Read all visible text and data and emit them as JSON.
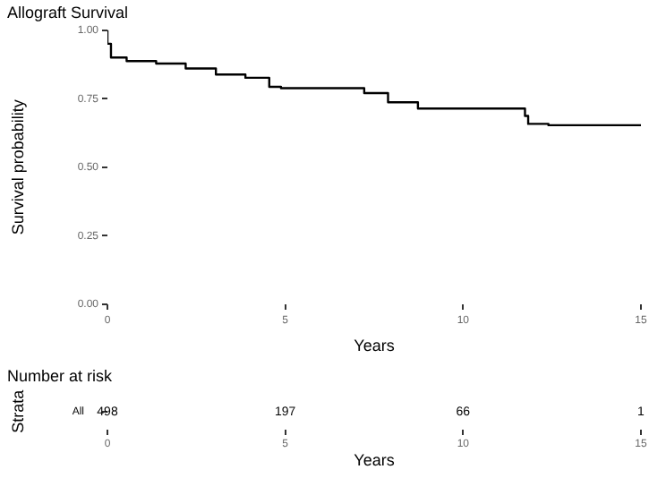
{
  "chart_data": [
    {
      "type": "step",
      "title": "Allograft Survival",
      "xlabel": "Years",
      "ylabel": "Survival probability",
      "x": [
        0,
        0.1,
        0.54,
        1.37,
        2.2,
        3.05,
        3.88,
        4.55,
        4.88,
        7.22,
        7.89,
        8.73,
        9.48,
        11.74,
        11.83,
        12.4,
        15
      ],
      "series": [
        {
          "color": "#000000",
          "values": [
            1.0,
            0.95,
            0.9,
            0.887,
            0.878,
            0.86,
            0.838,
            0.826,
            0.793,
            0.788,
            0.77,
            0.737,
            0.714,
            0.714,
            0.687,
            0.658,
            0.653
          ]
        }
      ],
      "xlim": [
        0,
        15
      ],
      "xticks": [
        0,
        5,
        10,
        15
      ],
      "ylim": [
        0,
        1.0
      ],
      "yticks": [
        {
          "value": 0,
          "label": "0.00"
        },
        {
          "value": 0.25,
          "label": "0.25"
        },
        {
          "value": 0.5,
          "label": "0.50"
        },
        {
          "value": 0.75,
          "label": "0.75"
        },
        {
          "value": 1.0,
          "label": "1.00"
        }
      ],
      "grid": false,
      "legend": false,
      "marker": "none"
    },
    {
      "type": "heatmap",
      "title": "Number at risk",
      "xlabel": "Years",
      "ylabel": "Strata",
      "categories": [
        "0",
        "5",
        "10",
        "15"
      ],
      "y_categories": [
        "All"
      ],
      "cells": [
        [
          498,
          197,
          66,
          1
        ]
      ],
      "data_labels": true
    }
  ]
}
